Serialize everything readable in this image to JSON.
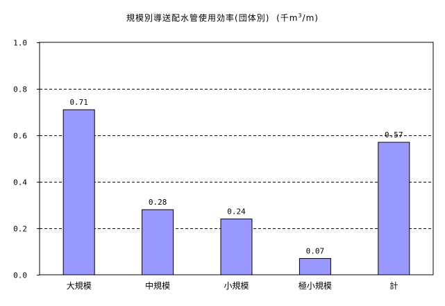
{
  "chart_data": {
    "type": "bar",
    "title": "規模別導送配水管使用効率(団体別)",
    "unit_prefix": "(千m",
    "unit_sup": "3",
    "unit_suffix": "/m)",
    "categories": [
      "大規模",
      "中規模",
      "小規模",
      "極小規模",
      "計"
    ],
    "values": [
      0.71,
      0.28,
      0.24,
      0.07,
      0.57
    ],
    "value_labels": [
      "0.71",
      "0.28",
      "0.24",
      "0.07",
      "0.57"
    ],
    "ylim": [
      0,
      1.0
    ],
    "yticks": [
      "0.0",
      "0.2",
      "0.4",
      "0.6",
      "0.8",
      "1.0"
    ],
    "xlabel": "",
    "ylabel": "",
    "grid": "dashed horizontal",
    "legend": "none",
    "colors": {
      "bar_fill": "#9999ff",
      "bar_stroke": "#000000",
      "grid": "#000000"
    }
  }
}
